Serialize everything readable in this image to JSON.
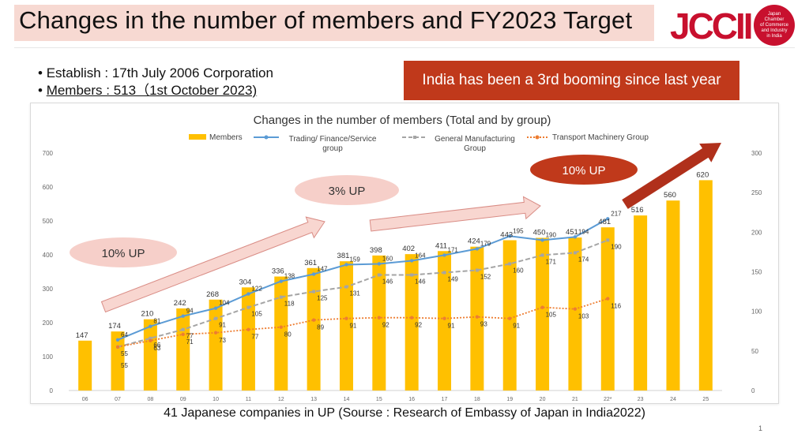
{
  "header": {
    "title": "Changes in the number of members and FY2023 Target",
    "logo_text": "JCCII",
    "logo_sub": [
      "Japan",
      "Chamber",
      "of Commerce",
      "and Industry",
      "in India"
    ]
  },
  "info": {
    "establish": "Establish : 17th July 2006 Corporation",
    "members": "Members : 513（1st October 2023)"
  },
  "banner": "India has been a 3rd booming since last year",
  "footnote": "41 Japanese companies in UP (Sourse : Research of Embassy of Japan in India2022)",
  "page_number": "1",
  "annotations": {
    "ten_up_left": "10% UP",
    "three_up": "3% UP",
    "ten_up_right": "10% UP"
  },
  "colors": {
    "members": "#ffc000",
    "trading": "#5b9bd5",
    "manufacturing": "#a5a5a5",
    "transport": "#ed7d31",
    "callout": "#f6cfc9",
    "arrow_fill": "#f8d6d0",
    "arrow_stroke": "#d98c85",
    "dark_arrow": "#b0301b",
    "banner": "#c0391b"
  },
  "chart_data": {
    "type": "bar",
    "title": "Changes in the number of members (Total and by group)",
    "categories": [
      "06",
      "07",
      "08",
      "09",
      "10",
      "11",
      "12",
      "13",
      "14",
      "15",
      "16",
      "17",
      "18",
      "19",
      "20",
      "21",
      "22*",
      "23",
      "24",
      "25"
    ],
    "ylim_left": [
      0,
      700
    ],
    "yticks_left": [
      0,
      100,
      200,
      300,
      400,
      500,
      600,
      700
    ],
    "ylim_right": [
      0,
      300
    ],
    "yticks_right": [
      0,
      50,
      100,
      150,
      200,
      250,
      300
    ],
    "grid": false,
    "legend": "top",
    "series": [
      {
        "name": "Members",
        "type": "bar",
        "axis": "left",
        "values": [
          147,
          174,
          210,
          242,
          268,
          304,
          336,
          361,
          381,
          398,
          402,
          411,
          424,
          443,
          450,
          451,
          481,
          516,
          560,
          620
        ]
      },
      {
        "name": "Trading/ Finance/Service group",
        "type": "line",
        "axis": "right",
        "values": [
          null,
          64,
          81,
          94,
          104,
          122,
          138,
          147,
          159,
          160,
          164,
          171,
          179,
          195,
          190,
          194,
          217,
          null,
          null,
          null
        ]
      },
      {
        "name": "General Manufacturing Group",
        "type": "line",
        "axis": "right",
        "values": [
          null,
          55,
          66,
          77,
          91,
          105,
          118,
          125,
          131,
          146,
          146,
          149,
          152,
          160,
          171,
          174,
          190,
          null,
          null,
          null
        ]
      },
      {
        "name": "Transport Machinery Group",
        "type": "line",
        "axis": "right",
        "values": [
          null,
          55,
          63,
          71,
          73,
          77,
          80,
          89,
          91,
          92,
          92,
          91,
          93,
          91,
          105,
          103,
          116,
          null,
          null,
          null
        ]
      }
    ]
  }
}
